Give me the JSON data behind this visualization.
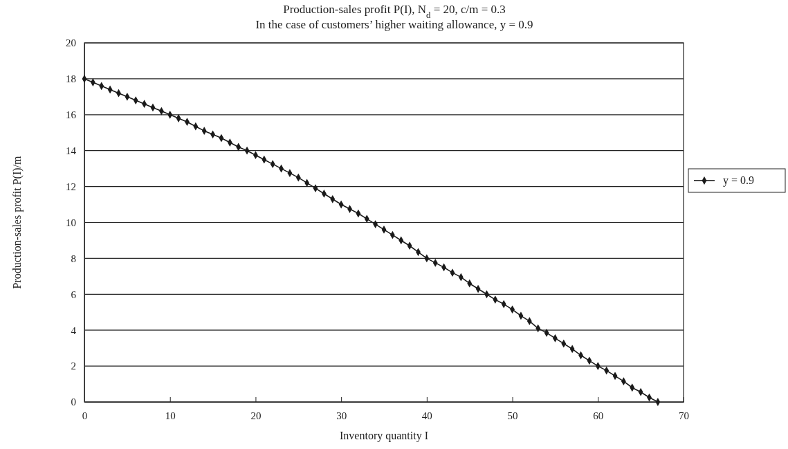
{
  "chart_data": {
    "type": "line",
    "title": "Production-sales profit P(I), N$_{d}$ = 20, c/m = 0.3",
    "subtitle": "In the case of customers’ higher waiting allowance, y = 0.9",
    "xlabel": "Inventory quantity I",
    "ylabel": "Production-sales profit P(I)/m",
    "x": [
      0,
      1,
      2,
      3,
      4,
      5,
      6,
      7,
      8,
      9,
      10,
      11,
      12,
      13,
      14,
      15,
      16,
      17,
      18,
      19,
      20,
      21,
      22,
      23,
      24,
      25,
      26,
      27,
      28,
      29,
      30,
      31,
      32,
      33,
      34,
      35,
      36,
      37,
      38,
      39,
      40,
      41,
      42,
      43,
      44,
      45,
      46,
      47,
      48,
      49,
      50,
      51,
      52,
      53,
      54,
      55,
      56,
      57,
      58,
      59,
      60,
      61,
      62,
      63,
      64,
      65,
      66,
      67
    ],
    "series": [
      {
        "name": "y = 0.9",
        "color": "#1a1a1a",
        "values": [
          18.0,
          17.8,
          17.6,
          17.4,
          17.2,
          17.0,
          16.8,
          16.6,
          16.4,
          16.2,
          16.0,
          15.8,
          15.6,
          15.35,
          15.1,
          14.9,
          14.7,
          14.45,
          14.2,
          14.0,
          13.75,
          13.5,
          13.25,
          13.0,
          12.75,
          12.5,
          12.2,
          11.9,
          11.6,
          11.3,
          11.0,
          10.75,
          10.5,
          10.2,
          9.9,
          9.6,
          9.3,
          9.0,
          8.7,
          8.35,
          8.0,
          7.75,
          7.5,
          7.2,
          6.95,
          6.6,
          6.3,
          6.0,
          5.7,
          5.45,
          5.15,
          4.8,
          4.5,
          4.1,
          3.85,
          3.55,
          3.25,
          2.95,
          2.6,
          2.3,
          2.0,
          1.75,
          1.45,
          1.15,
          0.8,
          0.55,
          0.25,
          0
        ]
      }
    ],
    "xlim": [
      0,
      70
    ],
    "xticks": [
      0,
      10,
      20,
      30,
      40,
      50,
      60,
      70
    ],
    "ylim": [
      0,
      20
    ],
    "yticks": [
      0,
      2,
      4,
      6,
      8,
      10,
      12,
      14,
      16,
      18,
      20
    ],
    "grid": "y",
    "legend": "right",
    "marker": "diamond",
    "line_style": "solid"
  }
}
